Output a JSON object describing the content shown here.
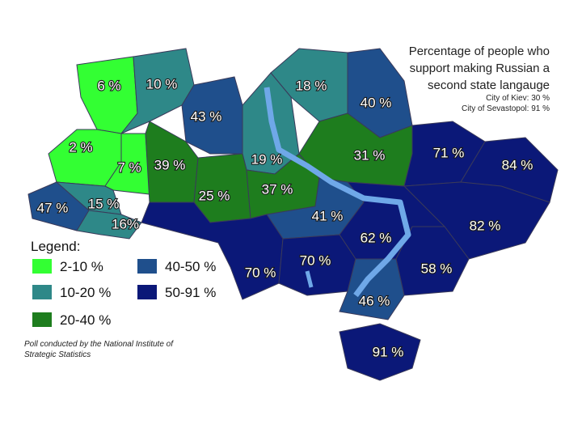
{
  "title": {
    "lines": [
      "Percentage of people who",
      "support making Russian a",
      "second state langauge"
    ],
    "notes": [
      "City of Kiev: 30 %",
      "City of Sevastopol: 91 %"
    ]
  },
  "legend": {
    "title": "Legend:",
    "entries": [
      {
        "label": "2-10 %",
        "color": "#33ff33"
      },
      {
        "label": "10-20 %",
        "color": "#2e8888"
      },
      {
        "label": "20-40 %",
        "color": "#1e7d1e"
      },
      {
        "label": "40-50 %",
        "color": "#1f4f8c"
      },
      {
        "label": "50-91 %",
        "color": "#0b1878"
      }
    ]
  },
  "regions": [
    {
      "label": "6 %",
      "tier": 0
    },
    {
      "label": "10 %",
      "tier": 1
    },
    {
      "label": "43 %",
      "tier": 3
    },
    {
      "label": "18 %",
      "tier": 1
    },
    {
      "label": "40 %",
      "tier": 3
    },
    {
      "label": "2 %",
      "tier": 0
    },
    {
      "label": "7 %",
      "tier": 0
    },
    {
      "label": "39 %",
      "tier": 2
    },
    {
      "label": "19 %",
      "tier": 1
    },
    {
      "label": "25 %",
      "tier": 2
    },
    {
      "label": "37 %",
      "tier": 2
    },
    {
      "label": "31 %",
      "tier": 2
    },
    {
      "label": "71 %",
      "tier": 4
    },
    {
      "label": "84 %",
      "tier": 4
    },
    {
      "label": "82 %",
      "tier": 4
    },
    {
      "label": "47 %",
      "tier": 3
    },
    {
      "label": "15 %",
      "tier": 1
    },
    {
      "label": "16%",
      "tier": 1
    },
    {
      "label": "41 %",
      "tier": 3
    },
    {
      "label": "62 %",
      "tier": 4
    },
    {
      "label": "58 %",
      "tier": 4
    },
    {
      "label": "70 %",
      "tier": 4
    },
    {
      "label": "70 %",
      "tier": 4
    },
    {
      "label": "46 %",
      "tier": 3
    },
    {
      "label": "91 %",
      "tier": 4
    }
  ],
  "footnote": [
    "Poll conducted by the National Institute of",
    "Strategic Statistics"
  ]
}
